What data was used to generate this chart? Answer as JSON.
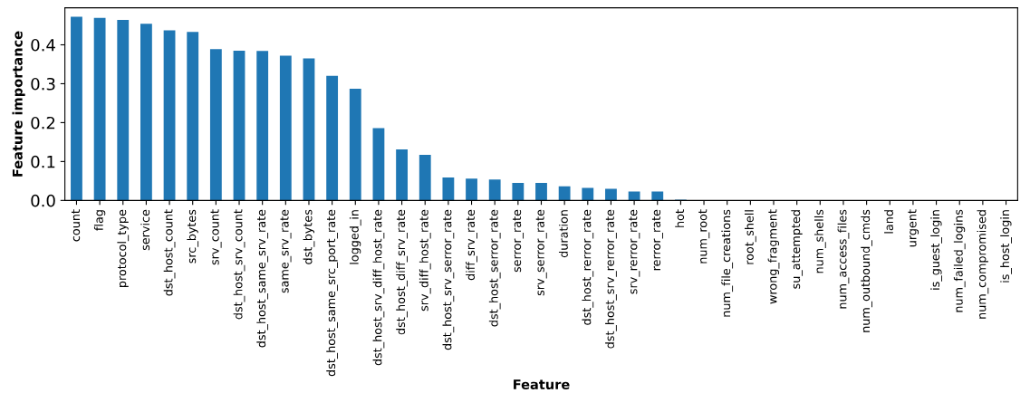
{
  "chart_data": {
    "type": "bar",
    "xlabel": "Feature",
    "ylabel": "Feature importance",
    "categories": [
      "count",
      "flag",
      "protocol_type",
      "service",
      "dst_host_count",
      "src_bytes",
      "srv_count",
      "dst_host_srv_count",
      "dst_host_same_srv_rate",
      "same_srv_rate",
      "dst_bytes",
      "dst_host_same_src_port_rate",
      "logged_in",
      "dst_host_srv_diff_host_rate",
      "dst_host_diff_srv_rate",
      "srv_diff_host_rate",
      "dst_host_srv_serror_rate",
      "diff_srv_rate",
      "dst_host_serror_rate",
      "serror_rate",
      "srv_serror_rate",
      "duration",
      "dst_host_rerror_rate",
      "dst_host_srv_rerror_rate",
      "srv_rerror_rate",
      "rerror_rate",
      "hot",
      "num_root",
      "num_file_creations",
      "root_shell",
      "wrong_fragment",
      "su_attempted",
      "num_shells",
      "num_access_files",
      "num_outbound_cmds",
      "land",
      "urgent",
      "is_guest_login",
      "num_failed_logins",
      "num_compromised",
      "is_host_login"
    ],
    "values": [
      0.472,
      0.469,
      0.464,
      0.454,
      0.437,
      0.433,
      0.389,
      0.385,
      0.384,
      0.372,
      0.365,
      0.32,
      0.287,
      0.186,
      0.131,
      0.117,
      0.059,
      0.056,
      0.054,
      0.045,
      0.045,
      0.036,
      0.032,
      0.03,
      0.023,
      0.023,
      0.002,
      0.001,
      0,
      0,
      0,
      0,
      0,
      0,
      0,
      0,
      0,
      0,
      0,
      0,
      0
    ],
    "color": "#1f77b4",
    "ylim": [
      0,
      0.495
    ],
    "yticks": [
      {
        "value": 0,
        "label": "0.0"
      },
      {
        "value": 0.1,
        "label": "0.1"
      },
      {
        "value": 0.2,
        "label": "0.2"
      },
      {
        "value": 0.3,
        "label": "0.3"
      },
      {
        "value": 0.4,
        "label": "0.4"
      }
    ],
    "grid": false,
    "legend": false
  }
}
